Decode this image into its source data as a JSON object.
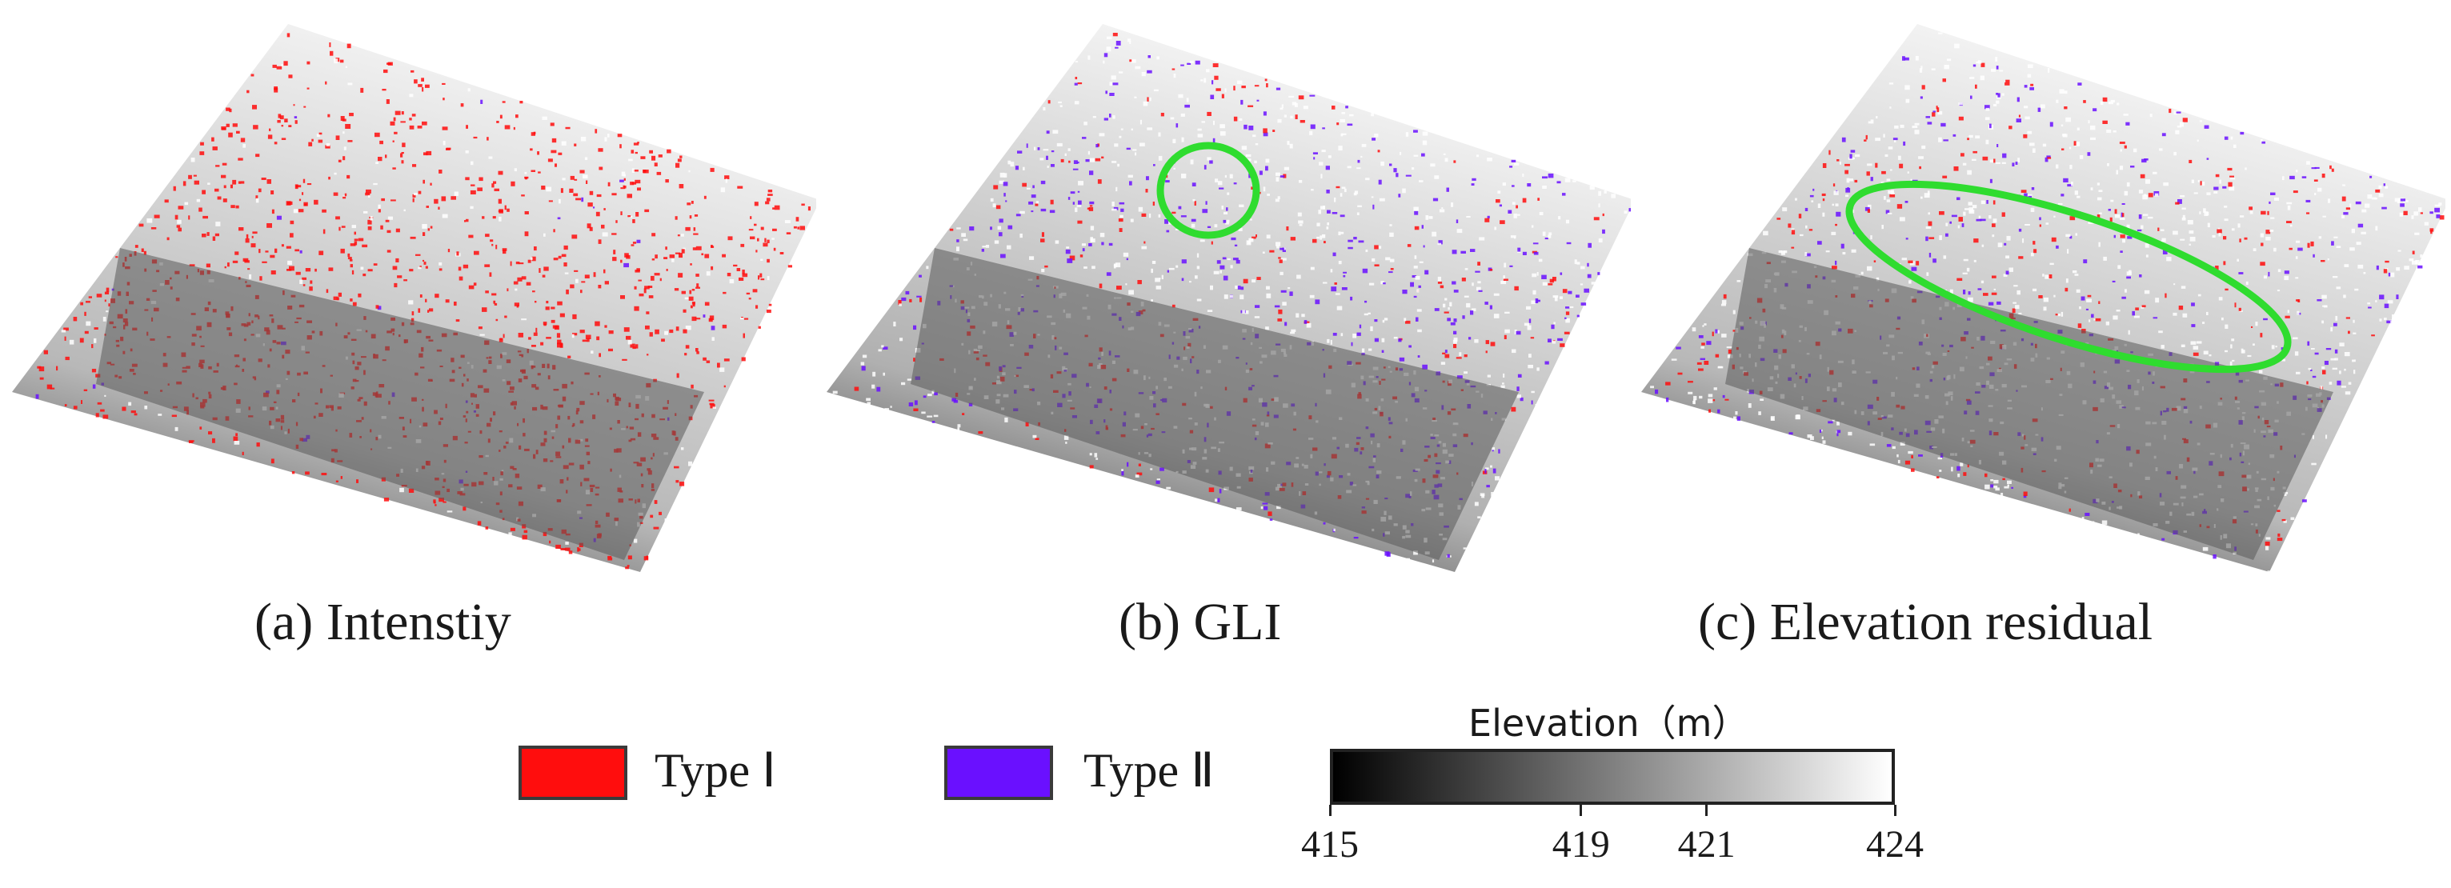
{
  "figure": {
    "panels": [
      {
        "caption": "(a) Intenstiy",
        "highlight": "none"
      },
      {
        "caption": "(b) GLI",
        "highlight": "circle"
      },
      {
        "caption": "(c) Elevation residual",
        "highlight": "ellipse"
      }
    ],
    "legend": {
      "type1": {
        "label": "Type Ⅰ",
        "color": "#ff0d0d"
      },
      "type2": {
        "label": "Type Ⅱ",
        "color": "#6a10ff"
      }
    },
    "colorbar": {
      "title": "Elevation（m）",
      "min": 415,
      "max": 424,
      "ticks": [
        {
          "value": 415,
          "label": "415"
        },
        {
          "value": 419,
          "label": "419"
        },
        {
          "value": 421,
          "label": "421"
        },
        {
          "value": 424,
          "label": "424"
        }
      ],
      "color_low": "#000000",
      "color_high": "#ffffff"
    },
    "highlight_color": "#2fdc2f"
  }
}
